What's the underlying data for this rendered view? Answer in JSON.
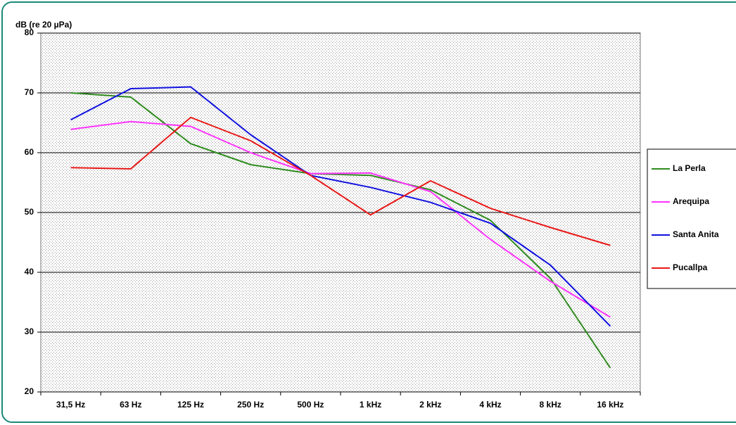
{
  "chart_data": {
    "type": "line",
    "y_label": "dB (re 20 µPa)",
    "categories": [
      "31,5 Hz",
      "63 Hz",
      "125 Hz",
      "250 Hz",
      "500 Hz",
      "1 kHz",
      "2 kHz",
      "4 kHz",
      "8 kHz",
      "16 kHz"
    ],
    "series": [
      {
        "name": "La Perla",
        "color": "#2e8b1e",
        "values": [
          70,
          69.3,
          61.5,
          58,
          56.5,
          56.2,
          53.8,
          48.7,
          39,
          24
        ]
      },
      {
        "name": "Arequipa",
        "color": "#ff33ff",
        "values": [
          63.9,
          65.2,
          64.4,
          60,
          56.5,
          56.6,
          53.5,
          45.5,
          38.5,
          32.5
        ]
      },
      {
        "name": "Santa Anita",
        "color": "#1010e0",
        "values": [
          65.5,
          70.7,
          71,
          63,
          56.2,
          54.2,
          51.7,
          48.2,
          41.2,
          31
        ]
      },
      {
        "name": "Pucallpa",
        "color": "#e81818",
        "values": [
          57.5,
          57.3,
          65.9,
          62,
          56.2,
          49.6,
          55.3,
          50.7,
          47.5,
          44.5
        ]
      }
    ],
    "ylim": [
      20,
      80
    ],
    "yticks": [
      20,
      30,
      40,
      50,
      60,
      70,
      80
    ],
    "grid": true,
    "legend": "right"
  }
}
